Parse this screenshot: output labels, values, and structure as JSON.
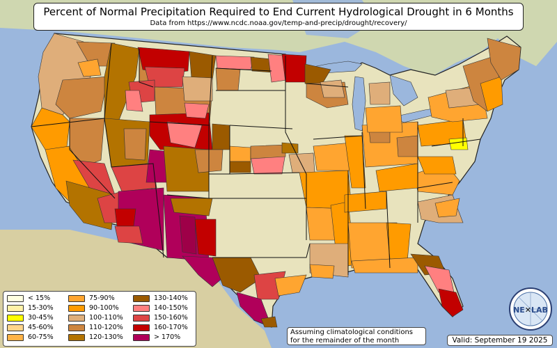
{
  "header": {
    "title": "Percent of Normal Precipitation Required to End Current Hydrological Drought in 6 Months",
    "subtitle": "Data from https://www.ncdc.noaa.gov/temp-and-precip/drought/recovery/"
  },
  "legend": {
    "items": [
      {
        "label": "< 15%",
        "color": "#ffffe0"
      },
      {
        "label": "15-30%",
        "color": "#fff2a8"
      },
      {
        "label": "30-45%",
        "color": "#ffff00"
      },
      {
        "label": "45-60%",
        "color": "#ffd58a"
      },
      {
        "label": "60-75%",
        "color": "#ffb347"
      },
      {
        "label": "75-90%",
        "color": "#ffa530"
      },
      {
        "label": "90-100%",
        "color": "#ff9b00"
      },
      {
        "label": "100-110%",
        "color": "#dfae7a"
      },
      {
        "label": "110-120%",
        "color": "#cd853f"
      },
      {
        "label": "120-130%",
        "color": "#b37300"
      },
      {
        "label": "130-140%",
        "color": "#9b5a00"
      },
      {
        "label": "140-150%",
        "color": "#ff8080"
      },
      {
        "label": "150-160%",
        "color": "#dd4444"
      },
      {
        "label": "160-170%",
        "color": "#c20000"
      },
      {
        "label": "> 170%",
        "color": "#b0005a"
      }
    ]
  },
  "footer": {
    "note_line1": "Assuming climatological conditions",
    "note_line2": "for the remainder of the month",
    "valid": "Valid: September 19 2025"
  },
  "logo": {
    "text_left": "NE",
    "text_right": "LAB",
    "icon": "nexlab-globe-logo"
  },
  "colors": {
    "ocean": "#9bb7dd",
    "land": "#e8e3bd",
    "state_border": "#000000"
  }
}
